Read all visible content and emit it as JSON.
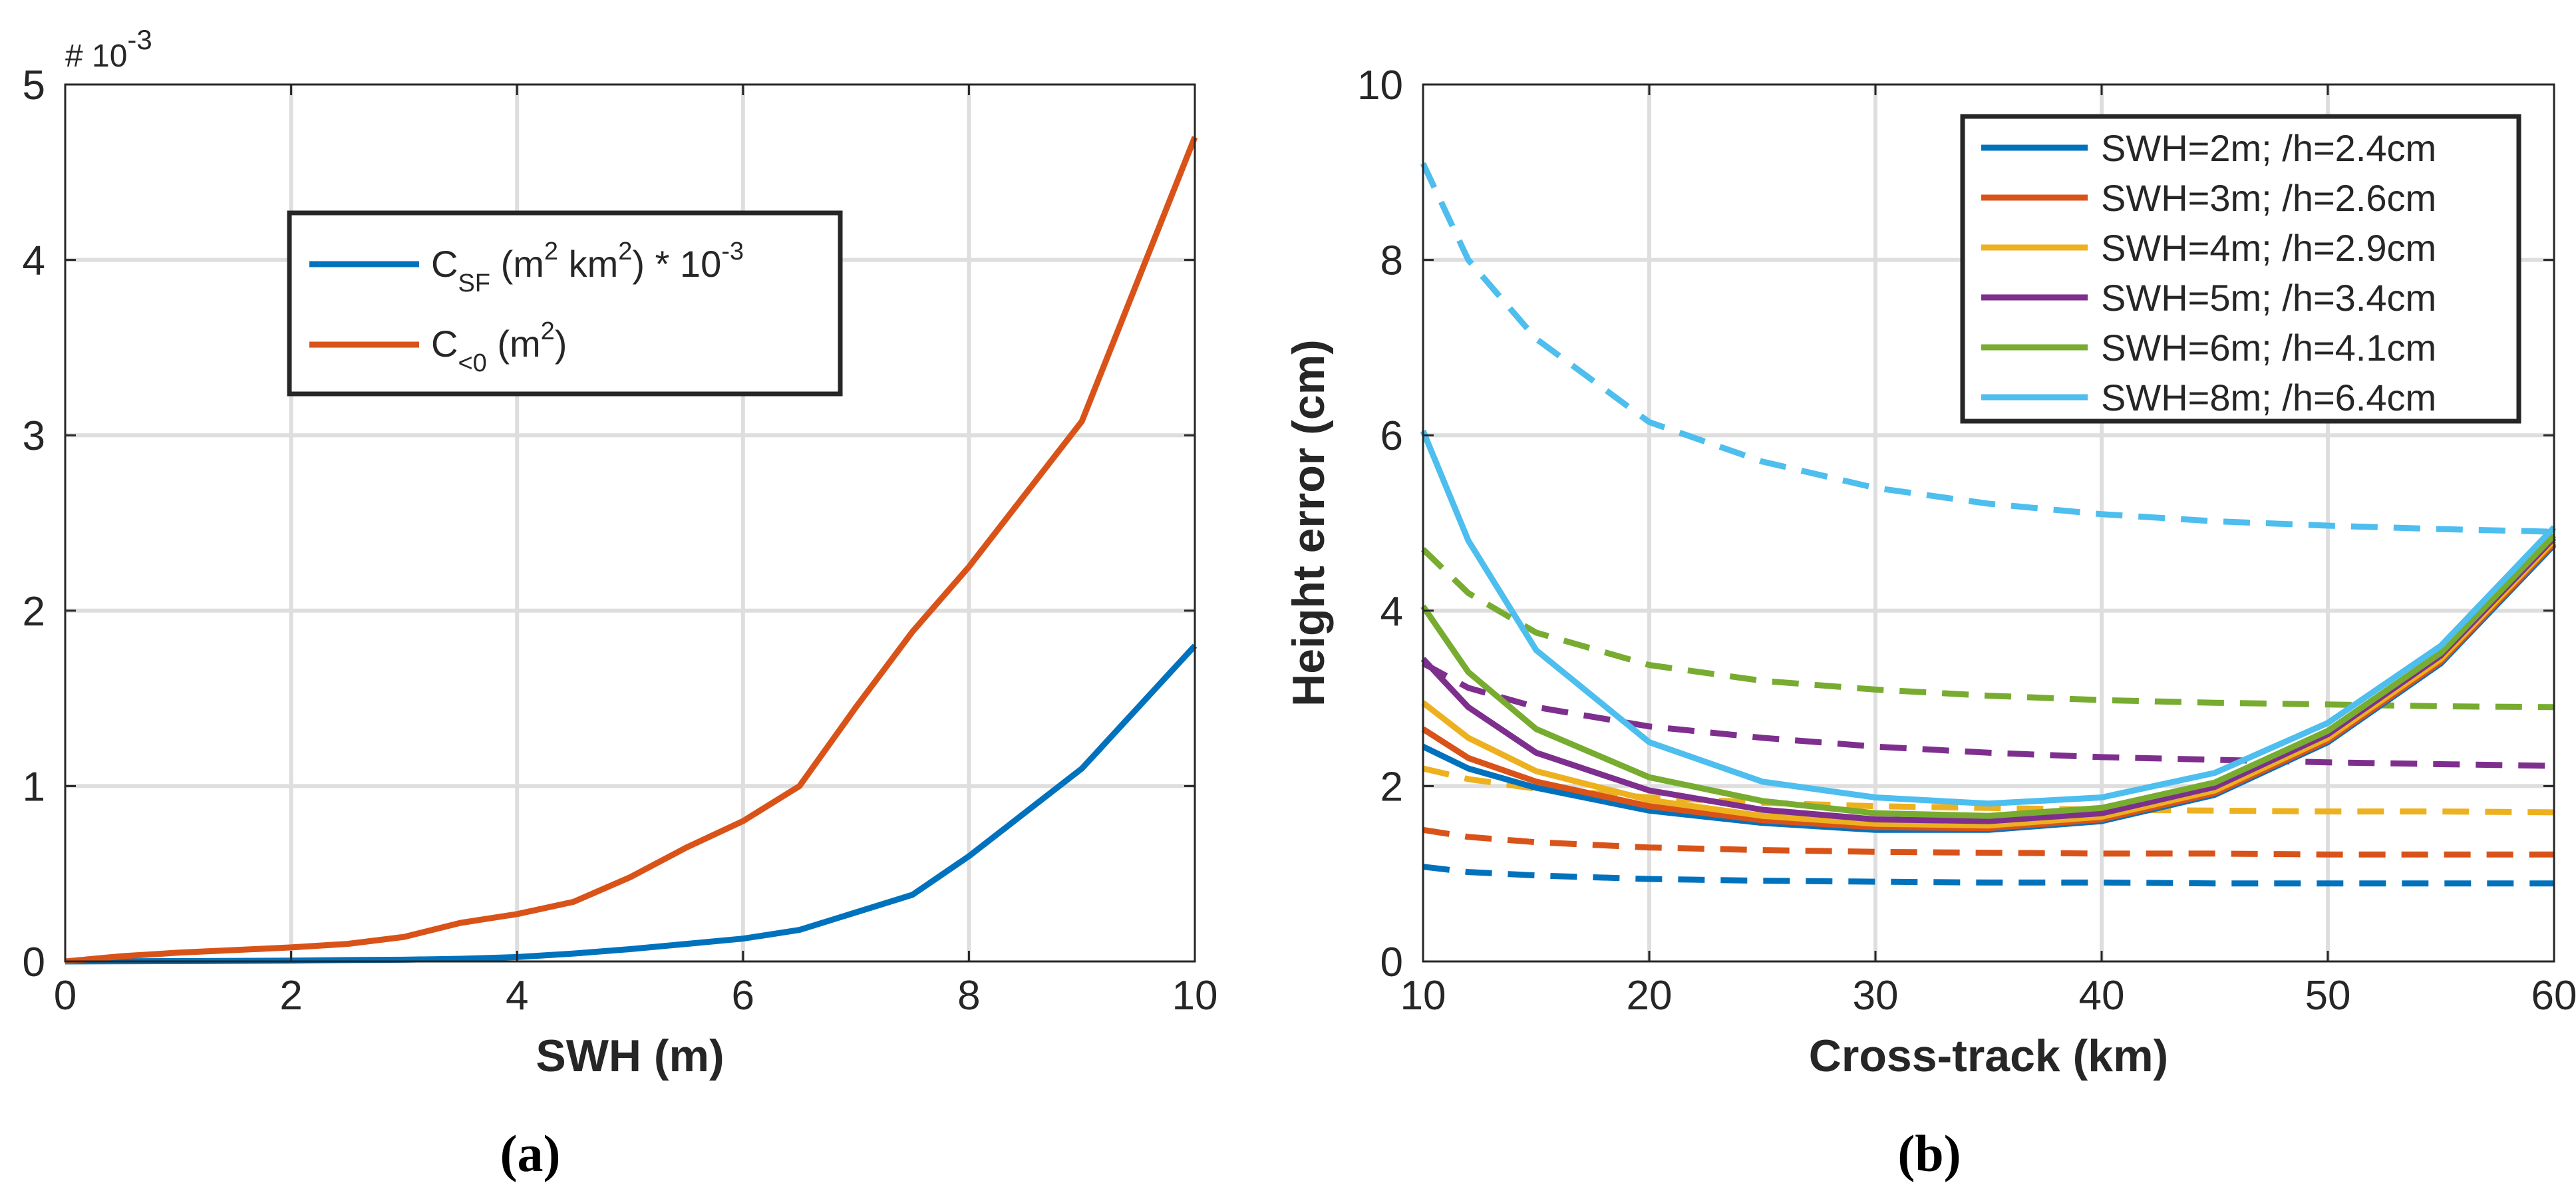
{
  "chart_data": [
    {
      "type": "line",
      "panel_label": "(a)",
      "xlabel": "SWH (m)",
      "ylabel": "",
      "xlim": [
        0,
        10
      ],
      "ylim": [
        0,
        5
      ],
      "xticks": [
        0,
        2,
        4,
        6,
        8,
        10
      ],
      "yticks": [
        0,
        1,
        2,
        3,
        4,
        5
      ],
      "xtick_labels": [
        "0",
        "2",
        "4",
        "6",
        "8",
        "10"
      ],
      "ytick_labels": [
        "0",
        "1",
        "2",
        "3",
        "4",
        "5"
      ],
      "exponent_label": "# 10",
      "exponent_power": "-3",
      "grid": true,
      "legend_position": "upper-center",
      "series": [
        {
          "name": "C_SF (m^2 km^2) * 10^-3",
          "legend": {
            "base": "C",
            "sub": "SF",
            "t1": " (m",
            "sup1": "2",
            "t2": " km",
            "sup2": "2",
            "t3": ") * 10",
            "sup3": "-3"
          },
          "color": "#0072BD",
          "dash": "solid",
          "x": [
            0,
            1,
            2,
            2.5,
            3,
            3.5,
            4,
            4.5,
            5,
            5.5,
            6,
            6.5,
            7.5,
            8,
            9,
            10
          ],
          "y": [
            0,
            0.002,
            0.005,
            0.008,
            0.01,
            0.015,
            0.025,
            0.045,
            0.07,
            0.1,
            0.13,
            0.18,
            0.38,
            0.6,
            1.1,
            1.8
          ]
        },
        {
          "name": "C_<0 (m^2)",
          "legend": {
            "base": "C",
            "sub": "<0",
            "t1": " (m",
            "sup1": "2",
            "t2": ")"
          },
          "color": "#D95319",
          "dash": "solid",
          "x": [
            0,
            0.5,
            1,
            1.5,
            2,
            2.5,
            3,
            3.5,
            4,
            4.5,
            5,
            5.5,
            6,
            6.5,
            7,
            7.5,
            8,
            9,
            10
          ],
          "y": [
            0,
            0.03,
            0.05,
            0.065,
            0.08,
            0.1,
            0.14,
            0.22,
            0.27,
            0.34,
            0.48,
            0.65,
            0.8,
            1.0,
            1.45,
            1.88,
            2.25,
            3.08,
            4.7
          ]
        }
      ]
    },
    {
      "type": "line",
      "panel_label": "(b)",
      "xlabel": "Cross-track (km)",
      "ylabel": "Height error (cm)",
      "xlim": [
        10,
        60
      ],
      "ylim": [
        0,
        10
      ],
      "xticks": [
        10,
        20,
        30,
        40,
        50,
        60
      ],
      "yticks": [
        0,
        2,
        4,
        6,
        8,
        10
      ],
      "xtick_labels": [
        "10",
        "20",
        "30",
        "40",
        "50",
        "60"
      ],
      "ytick_labels": [
        "0",
        "2",
        "4",
        "6",
        "8",
        "10"
      ],
      "grid": true,
      "legend_position": "top-right",
      "legend_entries": [
        {
          "label": "SWH=2m; /h=2.4cm",
          "color": "#0072BD"
        },
        {
          "label": "SWH=3m; /h=2.6cm",
          "color": "#D95319"
        },
        {
          "label": "SWH=4m; /h=2.9cm",
          "color": "#EDB120"
        },
        {
          "label": "SWH=5m; /h=3.4cm",
          "color": "#7E2F8E"
        },
        {
          "label": "SWH=6m; /h=4.1cm",
          "color": "#77AC30"
        },
        {
          "label": "SWH=8m; /h=6.4cm",
          "color": "#4DBEEE"
        }
      ],
      "series": [
        {
          "name": "SWH=2m dashed",
          "color": "#0072BD",
          "dash": "dashed",
          "x": [
            10,
            12,
            15,
            20,
            25,
            30,
            35,
            40,
            45,
            50,
            55,
            60
          ],
          "y": [
            1.08,
            1.02,
            0.98,
            0.94,
            0.92,
            0.91,
            0.9,
            0.9,
            0.89,
            0.89,
            0.89,
            0.89
          ]
        },
        {
          "name": "SWH=3m dashed",
          "color": "#D95319",
          "dash": "dashed",
          "x": [
            10,
            12,
            15,
            20,
            25,
            30,
            35,
            40,
            45,
            50,
            55,
            60
          ],
          "y": [
            1.5,
            1.42,
            1.36,
            1.3,
            1.27,
            1.25,
            1.24,
            1.23,
            1.23,
            1.22,
            1.22,
            1.22
          ]
        },
        {
          "name": "SWH=4m dashed",
          "color": "#EDB120",
          "dash": "dashed",
          "x": [
            10,
            12,
            15,
            20,
            25,
            30,
            35,
            40,
            45,
            50,
            55,
            60
          ],
          "y": [
            2.2,
            2.08,
            1.97,
            1.87,
            1.81,
            1.77,
            1.75,
            1.73,
            1.72,
            1.71,
            1.71,
            1.7
          ]
        },
        {
          "name": "SWH=5m dashed",
          "color": "#7E2F8E",
          "dash": "dashed",
          "x": [
            10,
            12,
            15,
            20,
            25,
            30,
            35,
            40,
            45,
            50,
            55,
            60
          ],
          "y": [
            3.4,
            3.12,
            2.9,
            2.68,
            2.55,
            2.45,
            2.38,
            2.33,
            2.3,
            2.27,
            2.25,
            2.23
          ]
        },
        {
          "name": "SWH=6m dashed",
          "color": "#77AC30",
          "dash": "dashed",
          "x": [
            10,
            12,
            15,
            20,
            25,
            30,
            35,
            40,
            45,
            50,
            55,
            60
          ],
          "y": [
            4.7,
            4.2,
            3.75,
            3.38,
            3.2,
            3.1,
            3.03,
            2.98,
            2.95,
            2.93,
            2.91,
            2.9
          ]
        },
        {
          "name": "SWH=8m dashed",
          "color": "#4DBEEE",
          "dash": "dashed",
          "x": [
            10,
            12,
            15,
            20,
            25,
            30,
            35,
            40,
            45,
            50,
            55,
            60
          ],
          "y": [
            9.1,
            8.0,
            7.1,
            6.15,
            5.7,
            5.4,
            5.22,
            5.1,
            5.02,
            4.97,
            4.93,
            4.9
          ]
        },
        {
          "name": "SWH=2m solid",
          "color": "#0072BD",
          "dash": "solid",
          "x": [
            10,
            12,
            15,
            20,
            25,
            30,
            35,
            40,
            45,
            50,
            55,
            60
          ],
          "y": [
            2.45,
            2.2,
            1.98,
            1.72,
            1.58,
            1.5,
            1.5,
            1.6,
            1.9,
            2.5,
            3.4,
            4.75
          ]
        },
        {
          "name": "SWH=3m solid",
          "color": "#D95319",
          "dash": "solid",
          "x": [
            10,
            12,
            15,
            20,
            25,
            30,
            35,
            40,
            45,
            50,
            55,
            60
          ],
          "y": [
            2.65,
            2.32,
            2.05,
            1.77,
            1.61,
            1.53,
            1.52,
            1.62,
            1.92,
            2.52,
            3.42,
            4.77
          ]
        },
        {
          "name": "SWH=4m solid",
          "color": "#EDB120",
          "dash": "solid",
          "x": [
            10,
            12,
            15,
            20,
            25,
            30,
            35,
            40,
            45,
            50,
            55,
            60
          ],
          "y": [
            2.95,
            2.55,
            2.17,
            1.84,
            1.66,
            1.57,
            1.55,
            1.65,
            1.95,
            2.55,
            3.45,
            4.8
          ]
        },
        {
          "name": "SWH=5m solid",
          "color": "#7E2F8E",
          "dash": "solid",
          "x": [
            10,
            12,
            15,
            20,
            25,
            30,
            35,
            40,
            45,
            50,
            55,
            60
          ],
          "y": [
            3.45,
            2.9,
            2.38,
            1.95,
            1.73,
            1.62,
            1.6,
            1.69,
            1.99,
            2.59,
            3.49,
            4.83
          ]
        },
        {
          "name": "SWH=6m solid",
          "color": "#77AC30",
          "dash": "solid",
          "x": [
            10,
            12,
            15,
            20,
            25,
            30,
            35,
            40,
            45,
            50,
            55,
            60
          ],
          "y": [
            4.05,
            3.3,
            2.65,
            2.1,
            1.83,
            1.69,
            1.66,
            1.75,
            2.04,
            2.63,
            3.52,
            4.86
          ]
        },
        {
          "name": "SWH=8m solid",
          "color": "#4DBEEE",
          "dash": "solid",
          "x": [
            10,
            12,
            15,
            20,
            25,
            30,
            35,
            40,
            45,
            50,
            55,
            60
          ],
          "y": [
            6.05,
            4.8,
            3.55,
            2.5,
            2.05,
            1.87,
            1.8,
            1.87,
            2.15,
            2.72,
            3.6,
            4.95
          ]
        }
      ]
    }
  ]
}
